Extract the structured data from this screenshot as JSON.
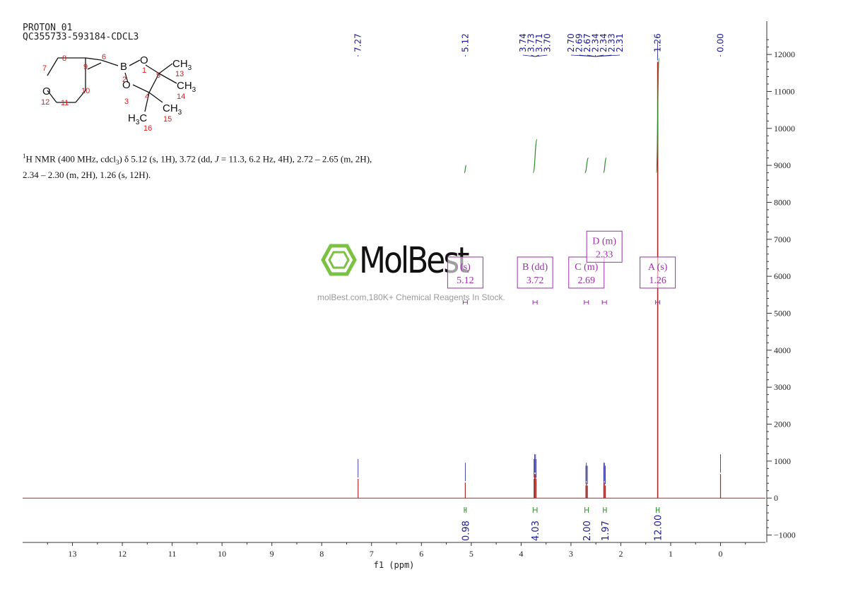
{
  "header": {
    "line1": "PROTON_01",
    "line2": "QC355733-593184-CDCL3"
  },
  "nmr_description": {
    "sup": "1",
    "line1": "H NMR (400 MHz, cdcl",
    "sub": "3",
    "line1b": ") δ 5.12 (s, 1H), 3.72 (dd, ",
    "j": "J",
    "line1c": " = 11.3, 6.2 Hz, 4H), 2.72 – 2.65 (m, 2H),",
    "line2": "2.34 – 2.30 (m, 2H), 1.26 (s, 12H)."
  },
  "watermark": {
    "brand": "MolBest",
    "tagline": "molBest.com,180K+ Chemical Reagents In Stock."
  },
  "molecule": {
    "atoms": [
      "O",
      "B",
      "O",
      "O",
      "CH3",
      "CH3",
      "CH3",
      "H3C"
    ],
    "numbers": [
      "1",
      "2",
      "3",
      "4",
      "5",
      "6",
      "7",
      "8",
      "9",
      "10",
      "11",
      "12",
      "13",
      "14",
      "15",
      "16"
    ]
  },
  "colors": {
    "spectrum": "#a52a2a",
    "integral": "#2e8b2e",
    "labels": "#1a1a8c",
    "annotation": "#9b2fa8",
    "axis": "#333333",
    "mol_numbers": "#d22020"
  },
  "chart_data": {
    "type": "line",
    "xlabel": "f1 (ppm)",
    "xlim": [
      14.0,
      -0.9
    ],
    "ylim": [
      -1200,
      12900
    ],
    "x_ticks": [
      13,
      12,
      11,
      10,
      9,
      8,
      7,
      6,
      5,
      4,
      3,
      2,
      1,
      0
    ],
    "y_ticks": [
      -1000,
      0,
      1000,
      2000,
      3000,
      4000,
      5000,
      6000,
      7000,
      8000,
      9000,
      10000,
      11000,
      12000
    ],
    "peaks": [
      {
        "ppm": 7.27,
        "height": 520
      },
      {
        "ppm": 5.12,
        "height": 420
      },
      {
        "ppm": 3.74,
        "height": 520
      },
      {
        "ppm": 3.73,
        "height": 650
      },
      {
        "ppm": 3.71,
        "height": 650
      },
      {
        "ppm": 3.7,
        "height": 520
      },
      {
        "ppm": 2.7,
        "height": 340
      },
      {
        "ppm": 2.69,
        "height": 420
      },
      {
        "ppm": 2.67,
        "height": 340
      },
      {
        "ppm": 2.34,
        "height": 340
      },
      {
        "ppm": 2.34,
        "height": 420
      },
      {
        "ppm": 2.33,
        "height": 420
      },
      {
        "ppm": 2.31,
        "height": 340
      },
      {
        "ppm": 1.26,
        "height": 11800
      },
      {
        "ppm": 0.0,
        "height": 650
      }
    ],
    "peak_labels": [
      [
        "7.27"
      ],
      [
        "5.12"
      ],
      [
        "3.74",
        "3.73",
        "3.71",
        "3.70"
      ],
      [
        "2.70",
        "2.69",
        "2.67",
        "2.34",
        "2.34",
        "2.33",
        "2.31",
        "1.26"
      ],
      [
        "0.00"
      ]
    ],
    "peak_label_groups": [
      {
        "ppm": 7.27,
        "labels": [
          "7.27"
        ]
      },
      {
        "ppm": 5.12,
        "labels": [
          "5.12"
        ]
      },
      {
        "ppm": 3.72,
        "labels": [
          "3.74",
          "3.73",
          "3.71",
          "3.70"
        ]
      },
      {
        "ppm": 2.51,
        "labels": [
          "2.70",
          "2.69",
          "2.67",
          "2.34",
          "2.34",
          "2.33",
          "2.31"
        ]
      },
      {
        "ppm": 1.26,
        "labels": [
          "1.26"
        ]
      },
      {
        "ppm": 0.0,
        "labels": [
          "0.00"
        ]
      }
    ],
    "integrals": [
      {
        "from": 5.14,
        "to": 5.1,
        "value": "0.98",
        "curve": [
          8800,
          9000
        ]
      },
      {
        "from": 3.76,
        "to": 3.68,
        "value": "4.03",
        "curve": [
          8800,
          9700
        ]
      },
      {
        "from": 2.72,
        "to": 2.65,
        "value": "2.00",
        "curve": [
          8800,
          9200
        ]
      },
      {
        "from": 2.35,
        "to": 2.29,
        "value": "1.97",
        "curve": [
          8800,
          9200
        ]
      },
      {
        "from": 1.29,
        "to": 1.23,
        "value": "12.00",
        "curve": [
          8800,
          11900
        ]
      }
    ],
    "multiplets": [
      {
        "id": "A",
        "type": "(s)",
        "shift": "1.26",
        "ppm": 1.26,
        "box_y": 6100
      },
      {
        "id": "B",
        "type": "(dd)",
        "shift": "3.72",
        "ppm": 3.72,
        "box_y": 6100
      },
      {
        "id": "C",
        "type": "(m)",
        "shift": "2.69",
        "ppm": 2.69,
        "box_y": 6100
      },
      {
        "id": "D",
        "type": "(m)",
        "shift": "2.33",
        "ppm": 2.33,
        "box_y": 6800
      },
      {
        "id": "",
        "type": "(s)",
        "shift": "5.12",
        "ppm": 5.12,
        "box_y": 6100
      }
    ]
  }
}
